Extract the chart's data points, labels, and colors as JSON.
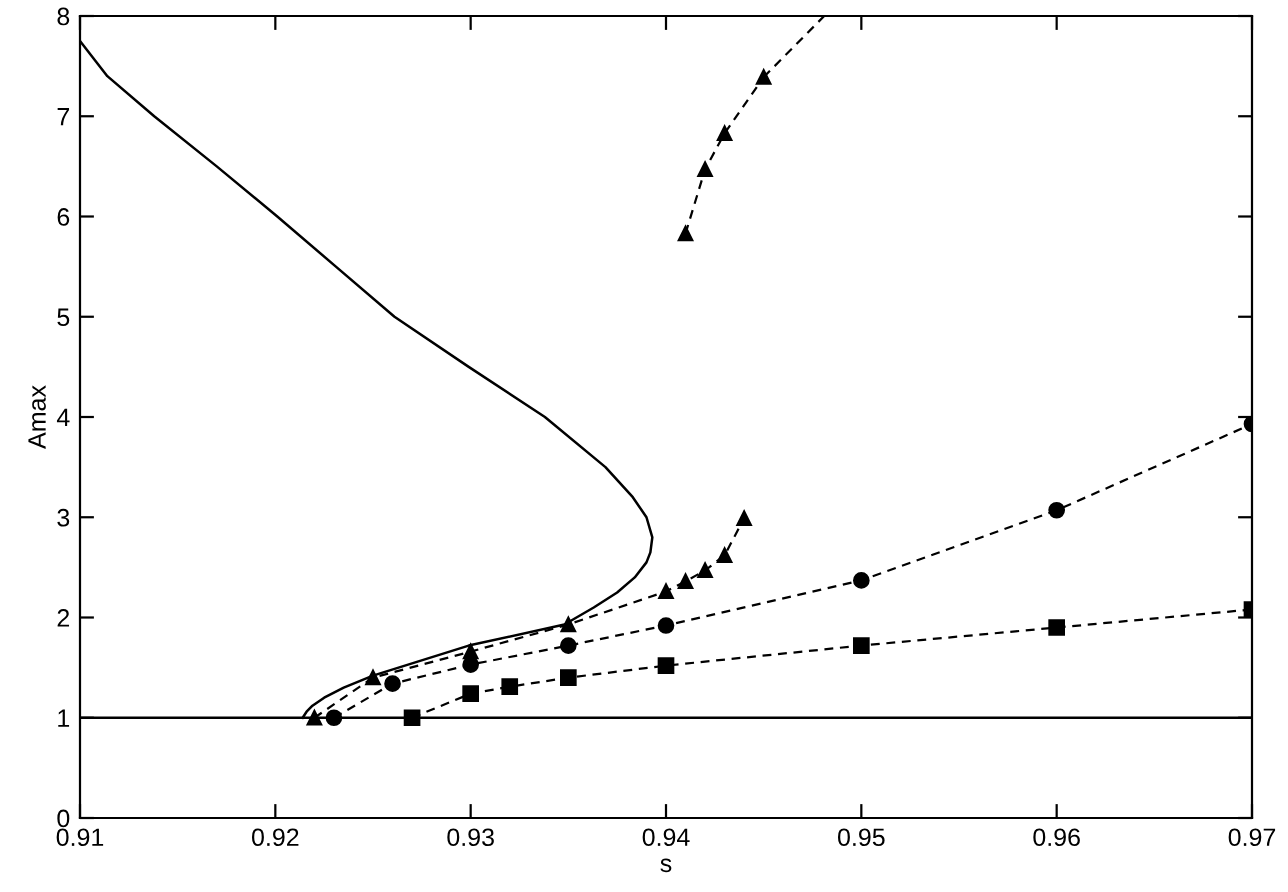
{
  "chart_data": {
    "type": "line",
    "xlabel": "s",
    "ylabel": "Amax",
    "xlim": [
      0.91,
      0.97
    ],
    "ylim": [
      0,
      8
    ],
    "xticks": [
      0.91,
      0.92,
      0.93,
      0.94,
      0.95,
      0.96,
      0.97
    ],
    "yticks": [
      0,
      1,
      2,
      3,
      4,
      5,
      6,
      7,
      8
    ],
    "grid": false,
    "legend": false,
    "ref_lines": [
      {
        "axis": "y",
        "value": 1,
        "color": "#000000",
        "line_style": "solid"
      }
    ],
    "series": [
      {
        "color": "#000000",
        "line_style": "solid",
        "marker": "none",
        "x": [
          0.91,
          0.9114,
          0.9138,
          0.917,
          0.9201,
          0.9231,
          0.9261,
          0.9299,
          0.9338,
          0.9369,
          0.9383,
          0.939,
          0.9393,
          0.9392,
          0.939,
          0.9384,
          0.9375,
          0.9363,
          0.9348,
          0.9299,
          0.925,
          0.9235,
          0.9225,
          0.9219,
          0.9216,
          0.9214
        ],
        "values": [
          7.75,
          7.4,
          7,
          6.5,
          6,
          5.5,
          5,
          4.5,
          4,
          3.5,
          3.2,
          3,
          2.8,
          2.65,
          2.55,
          2.4,
          2.25,
          2.1,
          1.93,
          1.72,
          1.42,
          1.3,
          1.2,
          1.12,
          1.06,
          1.0
        ]
      },
      {
        "color": "#000000",
        "line_style": "dashed",
        "marker": "triangle",
        "x": [
          0.922,
          0.925,
          0.93,
          0.935,
          0.94,
          0.941,
          0.942,
          0.943,
          0.944
        ],
        "values": [
          1.0,
          1.4,
          1.66,
          1.93,
          2.26,
          2.36,
          2.47,
          2.62,
          2.99
        ]
      },
      {
        "color": "#000000",
        "line_style": "dashed",
        "marker": "circle",
        "x": [
          0.923,
          0.926,
          0.93,
          0.935,
          0.94,
          0.95,
          0.96,
          0.97
        ],
        "values": [
          1.0,
          1.34,
          1.53,
          1.72,
          1.92,
          2.37,
          3.07,
          3.93
        ]
      },
      {
        "color": "#000000",
        "line_style": "dashed",
        "marker": "square",
        "x": [
          0.927,
          0.93,
          0.932,
          0.935,
          0.94,
          0.95,
          0.96,
          0.97
        ],
        "values": [
          1.0,
          1.24,
          1.31,
          1.4,
          1.52,
          1.72,
          1.9,
          2.08
        ]
      },
      {
        "color": "#000000",
        "line_style": "dashed",
        "marker": "triangle",
        "x": [
          0.941,
          0.942,
          0.943,
          0.945
        ],
        "values": [
          5.83,
          6.47,
          6.83,
          7.39
        ]
      },
      {
        "color": "#000000",
        "line_style": "dashed",
        "marker": "none",
        "x": [
          0.945,
          0.9481
        ],
        "values": [
          7.39,
          8.0
        ]
      }
    ]
  }
}
